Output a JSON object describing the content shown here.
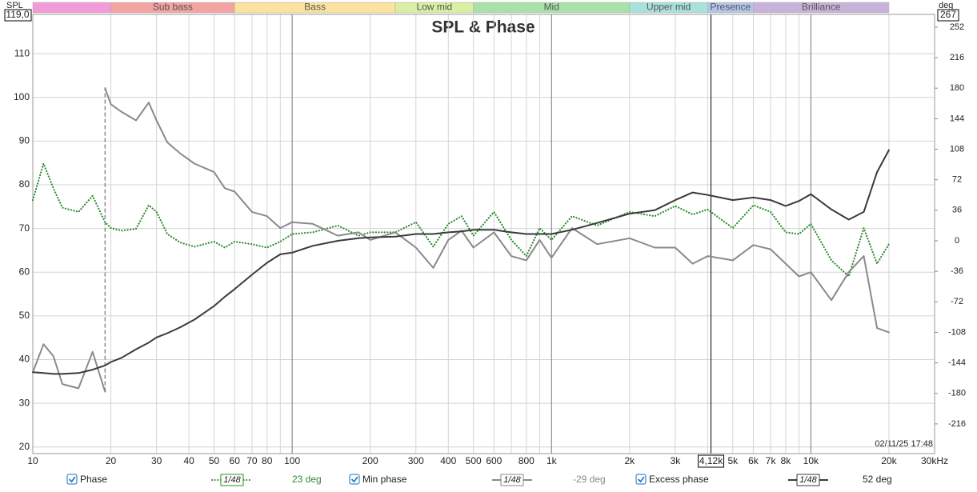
{
  "chart_data": {
    "type": "line",
    "title": "SPL & Phase",
    "y_unit": "SPL",
    "y2_unit": "deg",
    "ylim_label": "119,0",
    "y2lim_label": "267",
    "timestamp": "02/11/25 17:48",
    "log_x": true,
    "grid": true,
    "xlim": [
      10,
      30000
    ],
    "ylim": [
      18.5,
      119
    ],
    "y2lim": [
      -251,
      267
    ],
    "yticks": [
      20,
      30,
      40,
      50,
      60,
      70,
      80,
      90,
      100,
      110
    ],
    "y2ticks": [
      252,
      216,
      180,
      144,
      108,
      72,
      36,
      0,
      -36,
      -72,
      -108,
      -144,
      -180,
      -216
    ],
    "xticks": [
      10,
      20,
      30,
      40,
      50,
      60,
      70,
      80,
      100,
      200,
      300,
      400,
      500,
      600,
      800,
      {
        "value": 1000,
        "label": "1k"
      },
      {
        "value": 2000,
        "label": "2k"
      },
      {
        "value": 3000,
        "label": "3k"
      },
      {
        "value": 5000,
        "label": "5k"
      },
      {
        "value": 6000,
        "label": "6k"
      },
      {
        "value": 7000,
        "label": "7k"
      },
      {
        "value": 8000,
        "label": "8k"
      },
      {
        "value": 10000,
        "label": "10k"
      },
      {
        "value": 20000,
        "label": "20k"
      },
      {
        "value": 30000,
        "label": "30kHz"
      }
    ],
    "xminor": [
      90,
      700,
      900,
      4000,
      9000
    ],
    "cursor": {
      "value": 4120,
      "label": "4,12k"
    },
    "bands": [
      {
        "name": null,
        "start": 10,
        "end": 20,
        "color": "#f39bd8"
      },
      {
        "name": "Sub bass",
        "start": 20,
        "end": 60,
        "color": "#f4a3a3"
      },
      {
        "name": "Bass",
        "start": 60,
        "end": 250,
        "color": "#fbe39e"
      },
      {
        "name": "Low mid",
        "start": 250,
        "end": 500,
        "color": "#d9efa3"
      },
      {
        "name": "Mid",
        "start": 500,
        "end": 2000,
        "color": "#a9e1ab"
      },
      {
        "name": "Upper mid",
        "start": 2000,
        "end": 4000,
        "color": "#a8e2da"
      },
      {
        "name": "Presence",
        "start": 4000,
        "end": 6000,
        "color": "#b3c6ea"
      },
      {
        "name": "Brilliance",
        "start": 6000,
        "end": 20000,
        "color": "#c9b2da"
      }
    ],
    "x": [
      10,
      11,
      12,
      13,
      15,
      17,
      19,
      20,
      22,
      25,
      28,
      30,
      33,
      37,
      42,
      50,
      55,
      60,
      70,
      80,
      90,
      100,
      120,
      150,
      180,
      200,
      250,
      300,
      350,
      400,
      450,
      500,
      600,
      700,
      800,
      900,
      1000,
      1200,
      1500,
      2000,
      2500,
      3000,
      3500,
      4000,
      5000,
      6000,
      7000,
      8000,
      9000,
      10000,
      12000,
      14000,
      16000,
      18000,
      20000
    ],
    "series": [
      {
        "name": "Phase",
        "color": "#2e8b2e",
        "style": "dotted",
        "axis": "y2",
        "smoothing": "1/48",
        "readout": "23 deg",
        "values": [
          48,
          91,
          62,
          39,
          34,
          53,
          22,
          15,
          12,
          14,
          42,
          34,
          8,
          -2,
          -7,
          -1,
          -8,
          -1,
          -4,
          -8,
          -1,
          8,
          10,
          18,
          6,
          10,
          10,
          22,
          -7,
          20,
          29,
          6,
          34,
          1,
          -18,
          15,
          1,
          29,
          18,
          34,
          29,
          41,
          31,
          37,
          15,
          42,
          34,
          10,
          8,
          20,
          -23,
          -42,
          15,
          -27,
          -4
        ]
      },
      {
        "name": "Min phase",
        "color": "#8a8a8a",
        "style": "solid",
        "axis": "y2",
        "smoothing": "1/48",
        "readout": "-29 deg",
        "x": [
          10,
          11,
          12,
          13,
          15,
          17,
          19,
          19,
          19,
          20,
          22,
          25,
          28,
          30,
          33,
          37,
          42,
          50,
          55,
          60,
          70,
          80,
          90,
          100,
          120,
          150,
          180,
          200,
          250,
          300,
          350,
          400,
          450,
          500,
          600,
          700,
          800,
          900,
          1000,
          1200,
          1500,
          2000,
          2500,
          3000,
          3500,
          4000,
          5000,
          6000,
          7000,
          8000,
          9000,
          10000,
          12000,
          14000,
          16000,
          18000,
          20000
        ],
        "values": [
          -155,
          -122,
          -136,
          -169,
          -174,
          -131,
          -178,
          null,
          180,
          161,
          152,
          142,
          163,
          142,
          116,
          103,
          91,
          81,
          62,
          58,
          34,
          29,
          15,
          22,
          20,
          6,
          10,
          1,
          10,
          -8,
          -32,
          1,
          12,
          -8,
          10,
          -18,
          -23,
          1,
          -20,
          15,
          -4,
          3,
          -8,
          -8,
          -27,
          -18,
          -23,
          -5,
          -10,
          -27,
          -42,
          -37,
          -70,
          -37,
          -18,
          -103,
          -108
        ]
      },
      {
        "name": "Excess phase",
        "color": "#3a3a3a",
        "style": "solid",
        "axis": "y2",
        "smoothing": "1/48",
        "readout": "52 deg",
        "values": [
          -155,
          -156,
          -157,
          -157,
          -156,
          -152,
          -147,
          -143,
          -138,
          -128,
          -120,
          -114,
          -109,
          -102,
          -93,
          -77,
          -66,
          -57,
          -40,
          -26,
          -16,
          -14,
          -6,
          0,
          3,
          4,
          5,
          8,
          8,
          10,
          11,
          13,
          13,
          10,
          8,
          8,
          8,
          13,
          21,
          32,
          36,
          48,
          57,
          54,
          48,
          51,
          48,
          41,
          47,
          55,
          37,
          25,
          34,
          81,
          107
        ]
      }
    ]
  }
}
